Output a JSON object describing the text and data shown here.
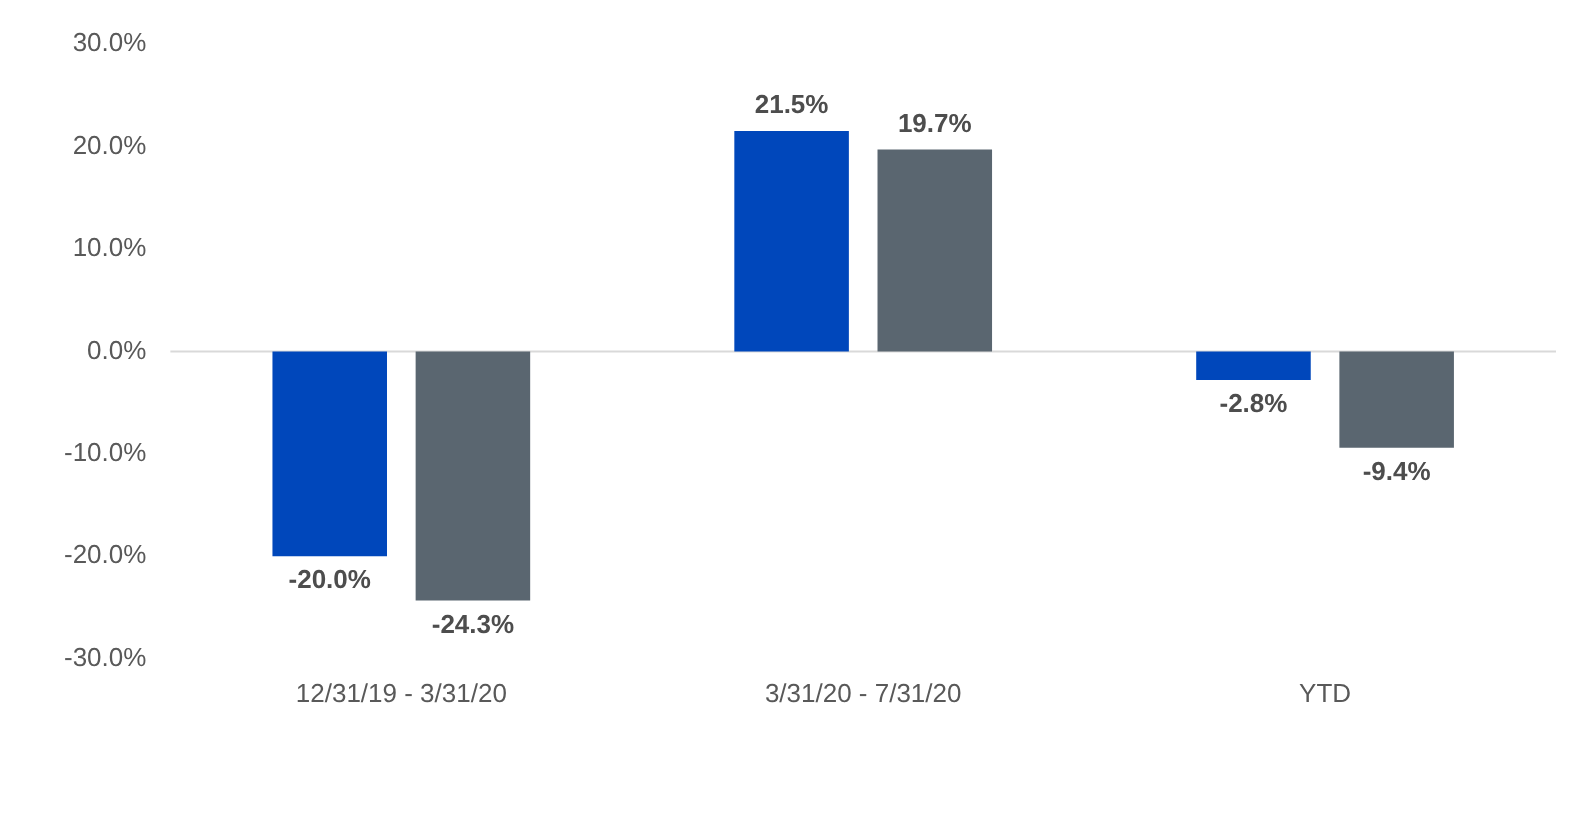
{
  "chart_data": {
    "type": "bar",
    "categories": [
      "12/31/19 - 3/31/20",
      "3/31/20 - 7/31/20",
      "YTD"
    ],
    "series": [
      {
        "color": "#0047bb",
        "values": [
          -20.0,
          21.5,
          -2.8
        ],
        "value_labels": [
          "-20.0%",
          "21.5%",
          "-2.8%"
        ]
      },
      {
        "color": "#5a6670",
        "values": [
          -24.3,
          19.7,
          -9.4
        ],
        "value_labels": [
          "-24.3%",
          "19.7%",
          "-9.4%"
        ]
      }
    ],
    "ylim": [
      -30,
      30
    ],
    "yticks": [
      {
        "value": -30,
        "label": "-30.0%"
      },
      {
        "value": -20,
        "label": "-20.0%"
      },
      {
        "value": -10,
        "label": "-10.0%"
      },
      {
        "value": 0,
        "label": "0.0%"
      },
      {
        "value": 10,
        "label": "10.0%"
      },
      {
        "value": 20,
        "label": "20.0%"
      },
      {
        "value": 30,
        "label": "30.0%"
      }
    ],
    "ref_lines": [
      {
        "axis": "y",
        "value": 0,
        "color": "#d9d9d9"
      }
    ],
    "grid": false,
    "legend": false
  }
}
